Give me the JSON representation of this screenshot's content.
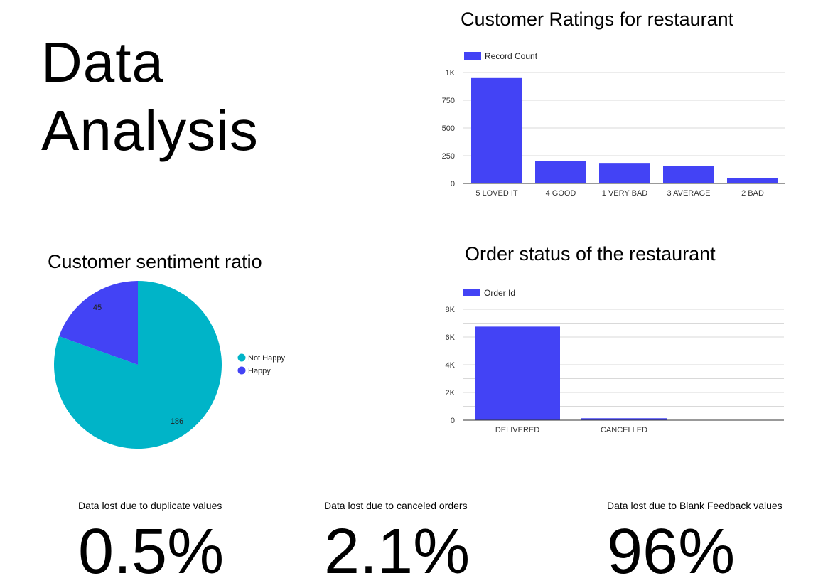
{
  "page": {
    "title_line1": "Data",
    "title_line2": "Analysis"
  },
  "colors": {
    "bar": "#4343f5",
    "teal": "#00b4c8",
    "grid": "#d9d9d9",
    "axis": "#333333"
  },
  "chart_data": [
    {
      "id": "ratings",
      "type": "bar",
      "title": "Customer Ratings for restaurant",
      "legend": "top-left",
      "categories": [
        "5 LOVED IT",
        "4 GOOD",
        "1 VERY BAD",
        "3 AVERAGE",
        "2 BAD"
      ],
      "series": [
        {
          "name": "Record Count",
          "values": [
            950,
            200,
            185,
            155,
            45
          ]
        }
      ],
      "ylim": [
        0,
        1000
      ],
      "yticks": [
        0,
        250,
        500,
        750,
        1000
      ],
      "ytick_labels": [
        "0",
        "250",
        "500",
        "750",
        "1K"
      ],
      "grid": true
    },
    {
      "id": "sentiment",
      "type": "pie",
      "title": "Customer sentiment ratio",
      "legend": "right",
      "labels": [
        "Not Happy",
        "Happy"
      ],
      "values": [
        186,
        45
      ],
      "value_labels": [
        "186",
        "45"
      ],
      "colors": [
        "#00b4c8",
        "#4343f5"
      ]
    },
    {
      "id": "orders",
      "type": "bar",
      "title": "Order status of the restaurant",
      "legend": "top-left",
      "categories": [
        "DELIVERED",
        "CANCELLED"
      ],
      "series": [
        {
          "name": "Order Id",
          "values": [
            6750,
            140
          ]
        }
      ],
      "ylim": [
        0,
        8000
      ],
      "yticks": [
        0,
        2000,
        4000,
        6000,
        8000
      ],
      "ytick_labels": [
        "0",
        "2K",
        "4K",
        "6K",
        "8K"
      ],
      "grid": true
    }
  ],
  "stats": [
    {
      "label": "Data lost due to duplicate values",
      "value": "0.5%"
    },
    {
      "label": "Data lost due to canceled orders",
      "value": "2.1%"
    },
    {
      "label": "Data lost due to Blank Feedback values",
      "value": "96%"
    }
  ]
}
